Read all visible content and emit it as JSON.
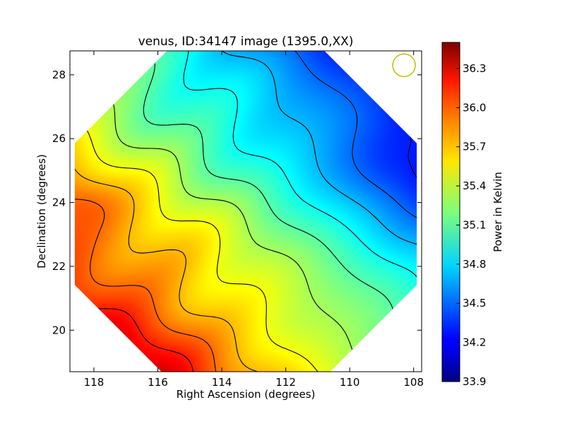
{
  "chart_data": {
    "type": "heatmap",
    "title": "venus, ID:34147 image (1395.0,XX)",
    "xlabel": "Right Ascension (degrees)",
    "ylabel": "Declination (degrees)",
    "xlim": [
      118.75,
      107.75
    ],
    "ylim": [
      18.7,
      28.75
    ],
    "x_ticks": [
      118,
      116,
      114,
      112,
      110,
      108
    ],
    "x_tick_labels": [
      "118",
      "116",
      "114",
      "112",
      "110",
      "108"
    ],
    "y_ticks": [
      20,
      22,
      24,
      26,
      28
    ],
    "y_tick_labels": [
      "20",
      "22",
      "24",
      "26",
      "28"
    ],
    "x_axis_inverted": true,
    "colormap": "jet",
    "colorbar": {
      "label": "Power in Kelvin",
      "vmin": 33.9,
      "vmax": 36.5,
      "ticks": [
        33.9,
        34.2,
        34.5,
        34.8,
        35.1,
        35.4,
        35.7,
        36.0,
        36.3
      ],
      "tick_labels": [
        "33.9",
        "34.2",
        "34.5",
        "34.8",
        "35.1",
        "35.4",
        "35.7",
        "36.0",
        "36.3"
      ]
    },
    "field_description": "Power map of a roughly circular region; high values (red, about 36.4 K) at lower-left (RA 117, Dec 19.5), low values (dark blue, about 34.0 K) at upper-right (RA 108.5, Dec 25.5); gradient runs diagonally with wavy black contour lines.",
    "peak_max": {
      "ra": 116.8,
      "dec": 19.5,
      "value": 36.45
    },
    "peak_min": {
      "ra": 108.2,
      "dec": 25.5,
      "value": 33.95
    },
    "beam_marker": {
      "ra": 108.3,
      "dec": 28.3,
      "color": "#bfbf00"
    },
    "contour_levels": [
      34.1,
      34.3,
      34.5,
      34.7,
      34.9,
      35.1,
      35.3,
      35.5,
      35.7,
      35.9,
      36.1,
      36.3
    ]
  }
}
